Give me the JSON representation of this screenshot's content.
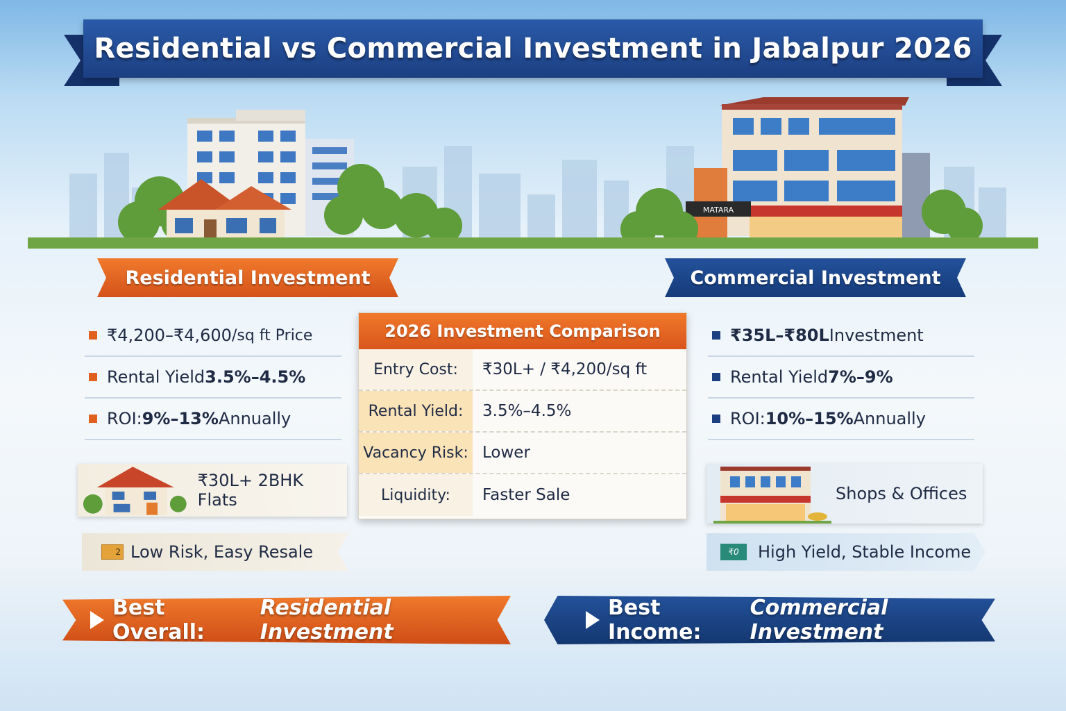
{
  "title": "Residential vs Commercial Investment in Jabalpur 2026",
  "residential": {
    "heading": "Residential Investment",
    "bullets": [
      {
        "lead": "₹4,200–₹4,600",
        "rest": "/sq ft Price"
      },
      {
        "lead": "Rental Yield ",
        "rest": "3.5%–4.5%"
      },
      {
        "lead": "ROI: ",
        "strong": "9%–13%",
        "rest": " Annually"
      }
    ],
    "card_label": "₹30L+ 2BHK Flats",
    "tag_icon_text": "2",
    "tag_label": "Low Risk, Easy Resale",
    "banner_lead": "Best Overall: ",
    "banner_em": "Residential Investment"
  },
  "commercial": {
    "heading": "Commercial Investment",
    "bullets": [
      {
        "lead": "₹35L–₹80L",
        "rest": " Investment"
      },
      {
        "lead": "Rental Yield ",
        "rest": "7%–9%"
      },
      {
        "lead": "ROI: ",
        "strong": "10%–15%",
        "rest": " Annually"
      }
    ],
    "card_label": "Shops & Offices",
    "tag_icon_text": "₹0",
    "tag_label": "High Yield, Stable Income",
    "banner_lead": "Best Income: ",
    "banner_em": "Commercial Investment",
    "shop_sign": "MATARA"
  },
  "comparison": {
    "heading": "2026 Investment Comparison",
    "rows": [
      {
        "key": "Entry Cost:",
        "value": "₹30L+ / ₹4,200/sq ft"
      },
      {
        "key": "Rental Yield:",
        "value": "3.5%–4.5%"
      },
      {
        "key": "Vacancy Risk:",
        "value": "Lower"
      },
      {
        "key": "Liquidity:",
        "value": "Faster Sale"
      }
    ]
  },
  "colors": {
    "orange": "#e0601e",
    "navy": "#1c3f82"
  }
}
